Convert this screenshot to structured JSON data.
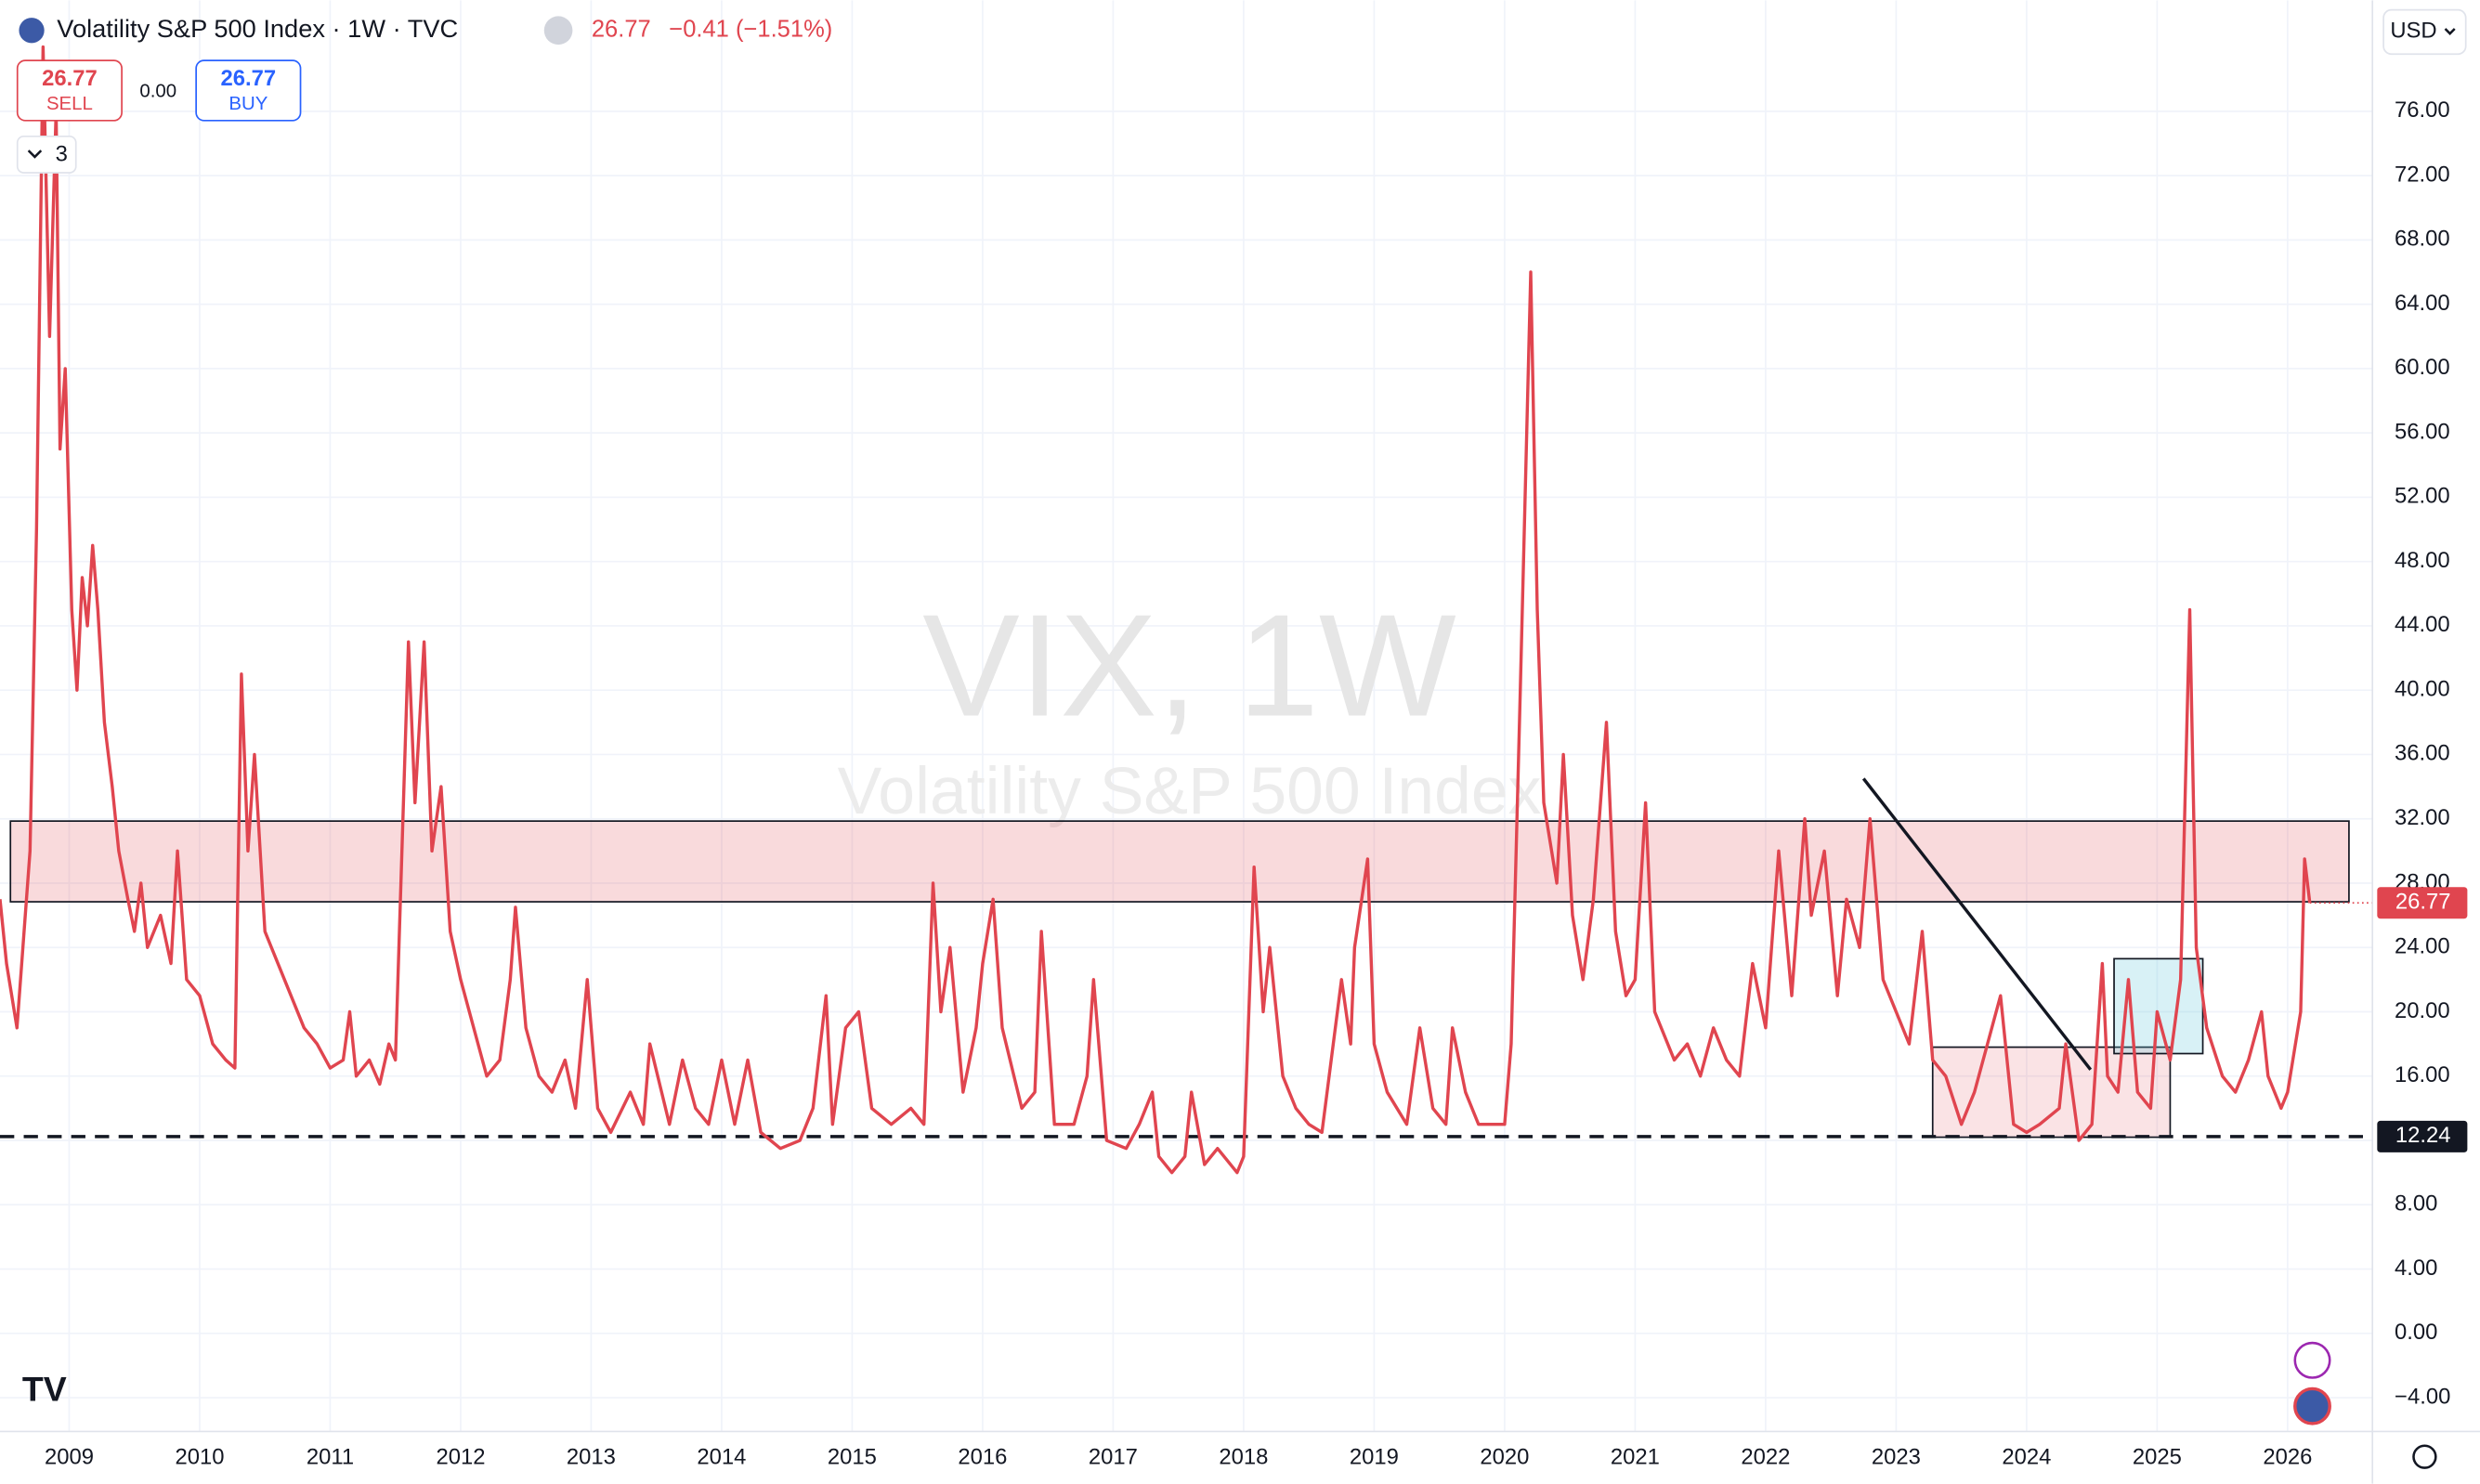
{
  "header": {
    "title": "Volatility S&P 500 Index · 1W · TVC",
    "price": "26.77",
    "change": "−0.41 (−1.51%)",
    "sell_price": "26.77",
    "sell": "SELL",
    "spread": "0.00",
    "buy_price": "26.77",
    "buy": "BUY",
    "indicators": "3",
    "currency": "USD"
  },
  "chart_data": {
    "type": "line",
    "watermark": "VIX, 1W",
    "watermark_sub": "Volatility S&P 500 Index",
    "xlim": [
      2008.47,
      2026.65
    ],
    "ylim": [
      -6.1,
      82.9
    ],
    "xticks": [
      2009,
      2010,
      2011,
      2012,
      2013,
      2014,
      2015,
      2016,
      2017,
      2018,
      2019,
      2020,
      2021,
      2022,
      2023,
      2024,
      2025,
      2026
    ],
    "yticks": [
      {
        "value": 76,
        "label": "76.00"
      },
      {
        "value": 72,
        "label": "72.00"
      },
      {
        "value": 68,
        "label": "68.00"
      },
      {
        "value": 64,
        "label": "64.00"
      },
      {
        "value": 60,
        "label": "60.00"
      },
      {
        "value": 56,
        "label": "56.00"
      },
      {
        "value": 52,
        "label": "52.00"
      },
      {
        "value": 48,
        "label": "48.00"
      },
      {
        "value": 44,
        "label": "44.00"
      },
      {
        "value": 40,
        "label": "40.00"
      },
      {
        "value": 36,
        "label": "36.00"
      },
      {
        "value": 32,
        "label": "32.00"
      },
      {
        "value": 28,
        "label": "28.00"
      },
      {
        "value": 24,
        "label": "24.00"
      },
      {
        "value": 20,
        "label": "20.00"
      },
      {
        "value": 16,
        "label": "16.00"
      },
      {
        "value": 12,
        "label": "12.00"
      },
      {
        "value": 8,
        "label": "8.00"
      },
      {
        "value": 4,
        "label": "4.00"
      },
      {
        "value": 0,
        "label": "0.00"
      },
      {
        "value": -4,
        "label": "−4.00"
      }
    ],
    "grid": true,
    "x": [
      2008.47,
      2008.52,
      2008.6,
      2008.7,
      2008.75,
      2008.8,
      2008.85,
      2008.9,
      2008.93,
      2008.97,
      2009.02,
      2009.06,
      2009.1,
      2009.14,
      2009.18,
      2009.22,
      2009.27,
      2009.33,
      2009.38,
      2009.45,
      2009.5,
      2009.55,
      2009.6,
      2009.7,
      2009.78,
      2009.83,
      2009.9,
      2010.0,
      2010.1,
      2010.2,
      2010.27,
      2010.32,
      2010.37,
      2010.42,
      2010.5,
      2010.6,
      2010.7,
      2010.8,
      2010.9,
      2011.0,
      2011.1,
      2011.15,
      2011.2,
      2011.3,
      2011.38,
      2011.45,
      2011.5,
      2011.6,
      2011.65,
      2011.72,
      2011.78,
      2011.85,
      2011.92,
      2012.0,
      2012.1,
      2012.2,
      2012.3,
      2012.38,
      2012.42,
      2012.5,
      2012.6,
      2012.7,
      2012.8,
      2012.88,
      2012.97,
      2013.05,
      2013.15,
      2013.3,
      2013.4,
      2013.45,
      2013.6,
      2013.7,
      2013.8,
      2013.9,
      2014.0,
      2014.1,
      2014.2,
      2014.3,
      2014.45,
      2014.6,
      2014.7,
      2014.8,
      2014.85,
      2014.95,
      2015.05,
      2015.15,
      2015.3,
      2015.45,
      2015.55,
      2015.62,
      2015.68,
      2015.75,
      2015.85,
      2015.95,
      2016.0,
      2016.08,
      2016.15,
      2016.3,
      2016.4,
      2016.45,
      2016.55,
      2016.7,
      2016.8,
      2016.85,
      2016.95,
      2017.1,
      2017.2,
      2017.3,
      2017.35,
      2017.45,
      2017.55,
      2017.6,
      2017.7,
      2017.8,
      2017.95,
      2018.0,
      2018.08,
      2018.15,
      2018.2,
      2018.3,
      2018.4,
      2018.5,
      2018.6,
      2018.75,
      2018.82,
      2018.85,
      2018.95,
      2019.0,
      2019.1,
      2019.25,
      2019.35,
      2019.45,
      2019.55,
      2019.6,
      2019.7,
      2019.8,
      2019.9,
      2020.0,
      2020.05,
      2020.12,
      2020.2,
      2020.25,
      2020.3,
      2020.4,
      2020.45,
      2020.52,
      2020.6,
      2020.68,
      2020.78,
      2020.85,
      2020.93,
      2021.0,
      2021.08,
      2021.15,
      2021.3,
      2021.4,
      2021.5,
      2021.6,
      2021.7,
      2021.8,
      2021.9,
      2022.0,
      2022.1,
      2022.2,
      2022.3,
      2022.35,
      2022.45,
      2022.55,
      2022.62,
      2022.72,
      2022.8,
      2022.9,
      2023.0,
      2023.1,
      2023.2,
      2023.28,
      2023.38,
      2023.5,
      2023.6,
      2023.7,
      2023.8,
      2023.9,
      2024.0,
      2024.1,
      2024.25,
      2024.3,
      2024.4,
      2024.5,
      2024.58,
      2024.62,
      2024.7,
      2024.78,
      2024.85,
      2024.95,
      2025.0,
      2025.1,
      2025.18,
      2025.25,
      2025.3,
      2025.38,
      2025.5,
      2025.6,
      2025.7,
      2025.8,
      2025.85,
      2025.95,
      2026.0,
      2026.1,
      2026.13,
      2026.17
    ],
    "series": [
      {
        "name": "VIX",
        "color": "#e0454f",
        "values": [
          27,
          23,
          19,
          30,
          50,
          80,
          62,
          76,
          55,
          60,
          45,
          40,
          47,
          44,
          49,
          45,
          38,
          34,
          30,
          27,
          25,
          28,
          24,
          26,
          23,
          30,
          22,
          21,
          18,
          17,
          16.5,
          41,
          30,
          36,
          25,
          23,
          21,
          19,
          18,
          16.5,
          17,
          20,
          16,
          17,
          15.5,
          18,
          17,
          43,
          33,
          43,
          30,
          34,
          25,
          22,
          19,
          16,
          17,
          22,
          26.5,
          19,
          16,
          15,
          17,
          14,
          22,
          14,
          12.5,
          15,
          13,
          18,
          13,
          17,
          14,
          13,
          17,
          13,
          17,
          12.5,
          11.5,
          12,
          14,
          21,
          13,
          19,
          20,
          14,
          13,
          14,
          13,
          28,
          20,
          24,
          15,
          19,
          23,
          27,
          19,
          14,
          15,
          25,
          13,
          13,
          16,
          22,
          12,
          11.5,
          13,
          15,
          11,
          10,
          11,
          15,
          10.5,
          11.5,
          10,
          11,
          29,
          20,
          24,
          16,
          14,
          13,
          12.5,
          22,
          18,
          24,
          29.5,
          18,
          15,
          13,
          19,
          14,
          13,
          19,
          15,
          13,
          13,
          13,
          18,
          40,
          66,
          45,
          33,
          28,
          36,
          26,
          22,
          27,
          38,
          25,
          21,
          22,
          33,
          20,
          17,
          18,
          16,
          19,
          17,
          16,
          23,
          19,
          30,
          21,
          32,
          26,
          30,
          21,
          27,
          24,
          32,
          22,
          20,
          18,
          25,
          17,
          16,
          13,
          15,
          18,
          21,
          13,
          12.5,
          13,
          14,
          18,
          12,
          13,
          23,
          16,
          15,
          22,
          15,
          14,
          20,
          17,
          22,
          45,
          24,
          19,
          16,
          15,
          17,
          20,
          16,
          14,
          15,
          20,
          29.5,
          26.77
        ],
        "last_label": "26.77"
      }
    ],
    "support_line": {
      "value": 12.24,
      "label": "12.24"
    },
    "zone": {
      "x": [
        2008.55,
        2026.47
      ],
      "y": [
        26.84,
        31.86
      ]
    },
    "trendline": {
      "x": [
        2022.75,
        2024.49
      ],
      "y": [
        34.5,
        16.4
      ]
    },
    "box_low": {
      "x": [
        2023.28,
        2025.1
      ],
      "y": [
        12.2,
        17.8
      ]
    },
    "box_high": {
      "x": [
        2024.67,
        2025.35
      ],
      "y": [
        17.4,
        23.3
      ]
    }
  }
}
